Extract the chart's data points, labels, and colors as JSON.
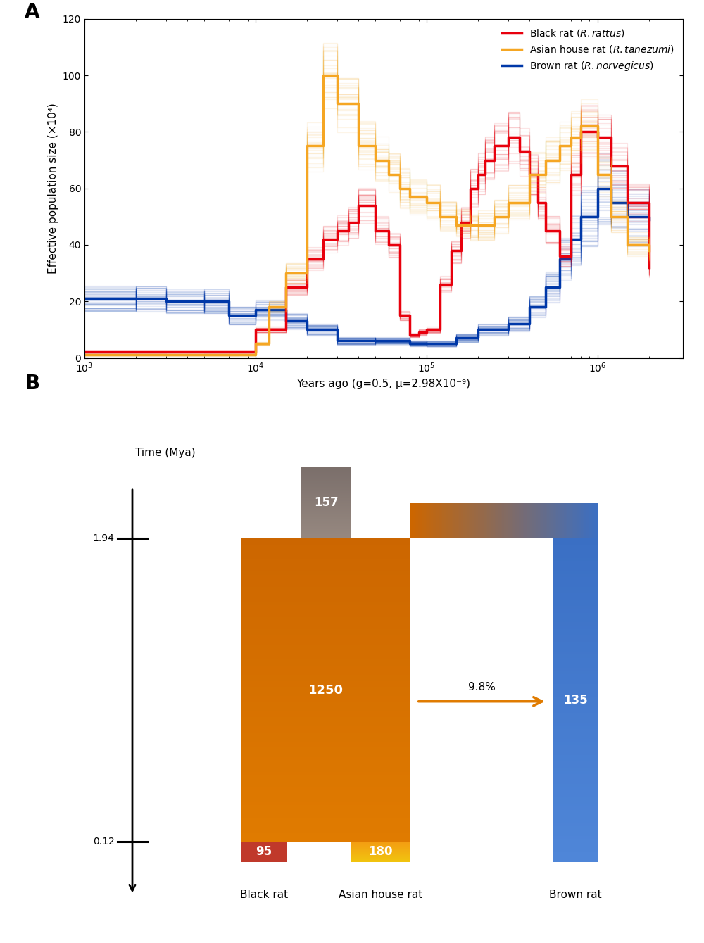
{
  "panel_A": {
    "xlabel": "Years ago (g=0.5, μ=2.98X10⁻⁹)",
    "ylabel": "Effective population size (×10⁴)",
    "ylim": [
      0,
      120
    ],
    "legend": [
      {
        "label": "Black rat (R. rattus)",
        "color": "#e8000d"
      },
      {
        "label": "Asian house rat (R. tanezumi)",
        "color": "#f5a623"
      },
      {
        "label": "Brown rat (R. norvegicus)",
        "color": "#0038a8"
      }
    ],
    "red_line": {
      "x": [
        1000,
        2000,
        3000,
        5000,
        7000,
        10000,
        15000,
        20000,
        25000,
        30000,
        35000,
        40000,
        50000,
        60000,
        70000,
        80000,
        90000,
        100000,
        120000,
        140000,
        160000,
        180000,
        200000,
        220000,
        250000,
        300000,
        350000,
        400000,
        450000,
        500000,
        600000,
        700000,
        800000,
        1000000,
        1200000,
        1500000,
        2000000
      ],
      "y": [
        2,
        2,
        2,
        2,
        2,
        10,
        25,
        35,
        42,
        45,
        48,
        54,
        45,
        40,
        15,
        8,
        9,
        10,
        26,
        38,
        48,
        60,
        65,
        70,
        75,
        78,
        73,
        65,
        55,
        45,
        36,
        65,
        80,
        78,
        68,
        55,
        32
      ]
    },
    "orange_line": {
      "x": [
        1000,
        3000,
        5000,
        8000,
        10000,
        12000,
        15000,
        20000,
        25000,
        30000,
        40000,
        50000,
        60000,
        70000,
        80000,
        100000,
        120000,
        150000,
        180000,
        200000,
        250000,
        300000,
        400000,
        500000,
        600000,
        700000,
        800000,
        1000000,
        1200000,
        1500000,
        2000000
      ],
      "y": [
        1,
        1,
        1,
        1,
        5,
        18,
        30,
        75,
        100,
        90,
        75,
        70,
        65,
        60,
        57,
        55,
        50,
        47,
        47,
        47,
        50,
        55,
        65,
        70,
        75,
        78,
        82,
        65,
        50,
        40,
        38
      ]
    },
    "blue_line": {
      "x": [
        1000,
        2000,
        3000,
        5000,
        7000,
        10000,
        15000,
        20000,
        30000,
        50000,
        80000,
        100000,
        150000,
        200000,
        300000,
        400000,
        500000,
        600000,
        700000,
        800000,
        1000000,
        1200000,
        1500000,
        2000000
      ],
      "y": [
        21,
        21,
        20,
        20,
        15,
        17,
        13,
        10,
        6,
        6,
        5,
        5,
        7,
        10,
        12,
        18,
        25,
        35,
        42,
        50,
        60,
        55,
        50,
        49
      ]
    }
  },
  "panel_B": {
    "time_axis_label": "Time (Mya)",
    "time_ticks": [
      0.12,
      1.94
    ],
    "species_labels": [
      "Black rat",
      "Asian house rat",
      "Brown rat"
    ],
    "colors": {
      "red_top": "#c0392b",
      "red_bottom": "#c0392b",
      "yellow_top": "#f39c12",
      "yellow_bottom": "#f1c40f",
      "orange_top": "#cc6600",
      "orange_bottom": "#e07b00",
      "blue_top": "#3a6fc4",
      "blue_bottom": "#4f86d8",
      "gray_top": "#7a6e6a",
      "gray_bottom": "#968880",
      "arrow_color": "#e07b00"
    },
    "labels": {
      "black_n": "95",
      "asian_n": "180",
      "merged_n": "1250",
      "gray_n": "157",
      "brown_n": "135",
      "introgression": "9.8%"
    }
  }
}
